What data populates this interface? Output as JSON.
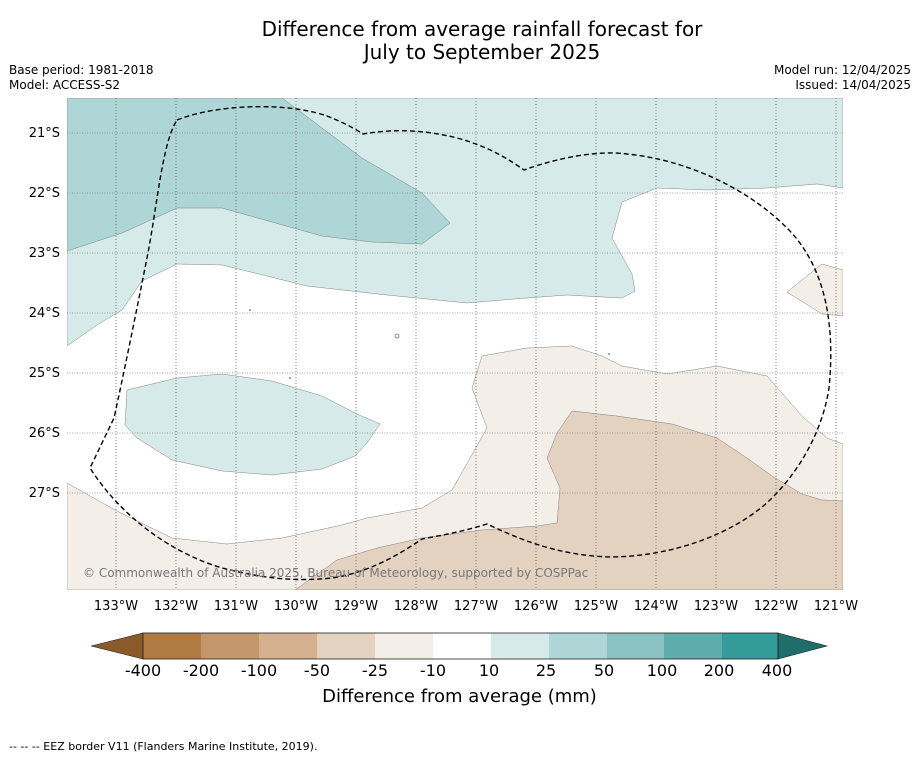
{
  "title_line1": "Difference from average rainfall forecast for",
  "title_line2": "July to September 2025",
  "base_period": "Base period: 1981-2018",
  "model": "Model: ACCESS-S2",
  "model_run": "Model run: 12/04/2025",
  "issued": "Issued: 14/04/2025",
  "map": {
    "latitudes": [
      "21°S",
      "22°S",
      "23°S",
      "24°S",
      "25°S",
      "26°S",
      "27°S"
    ],
    "longitudes": [
      "133°W",
      "132°W",
      "131°W",
      "130°W",
      "129°W",
      "128°W",
      "127°W",
      "126°W",
      "125°W",
      "124°W",
      "123°W",
      "122°W",
      "121°W"
    ],
    "copyright": "© Commonwealth of Australia 2025, Bureau of Meteorology, supported by COSPPac",
    "colors": {
      "wet_10_25": "#d6eae9",
      "wet_25_50": "#aed6d6",
      "dry_10_25": "#f4eee8",
      "dry_25_50": "#e4d2c1"
    }
  },
  "colorbar": {
    "ticks": [
      "-400",
      "-200",
      "-100",
      "-50",
      "-25",
      "-10",
      "10",
      "25",
      "50",
      "100",
      "200",
      "400"
    ],
    "colors": [
      "#8b5a2b",
      "#b07a43",
      "#c4976a",
      "#d4b08f",
      "#e4d2c1",
      "#f4eee8",
      "#ffffff",
      "#d6eae9",
      "#aed6d6",
      "#8ac2c2",
      "#5eacac",
      "#339b99",
      "#1f6e6c"
    ],
    "label": "Difference from average (mm)"
  },
  "footnote": "--  --  -- EEZ border V11 (Flanders Marine Institute, 2019)."
}
